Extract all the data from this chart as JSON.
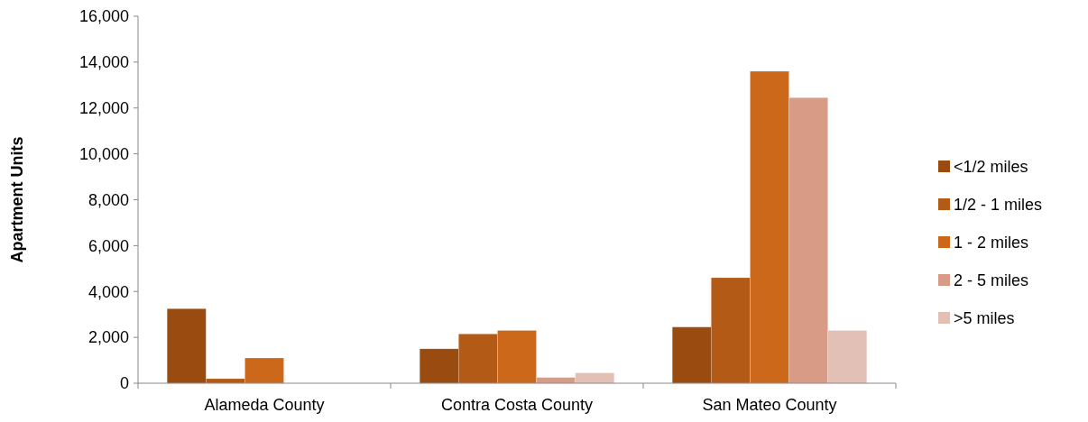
{
  "chart_data": {
    "type": "bar",
    "ylabel": "Apartment Units",
    "categories": [
      "Alameda County",
      "Contra Costa County",
      "San Mateo County"
    ],
    "series": [
      {
        "name": "<1/2 miles",
        "color": "#994b10",
        "values": [
          3250,
          1500,
          2450
        ]
      },
      {
        "name": "1/2 - 1 miles",
        "color": "#b35a16",
        "values": [
          200,
          2150,
          4600
        ]
      },
      {
        "name": "1 - 2 miles",
        "color": "#cb6819",
        "values": [
          1100,
          2300,
          13600
        ]
      },
      {
        "name": "2 - 5 miles",
        "color": "#d89b86",
        "values": [
          0,
          250,
          12450
        ]
      },
      {
        "name": ">5 miles",
        "color": "#e3c0b6",
        "values": [
          0,
          450,
          2300
        ]
      }
    ],
    "ylim": [
      0,
      16000
    ],
    "yticks": [
      {
        "value": 0,
        "label": "0"
      },
      {
        "value": 2000,
        "label": "2,000"
      },
      {
        "value": 4000,
        "label": "4,000"
      },
      {
        "value": 6000,
        "label": "6,000"
      },
      {
        "value": 8000,
        "label": "8,000"
      },
      {
        "value": 10000,
        "label": "10,000"
      },
      {
        "value": 12000,
        "label": "12,000"
      },
      {
        "value": 14000,
        "label": "14,000"
      },
      {
        "value": 16000,
        "label": "16,000"
      }
    ],
    "legend": "right",
    "grid": false
  }
}
